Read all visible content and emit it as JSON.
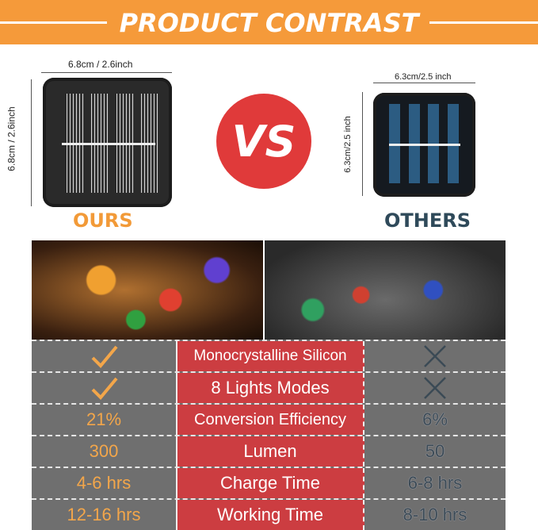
{
  "banner": {
    "title": "PRODUCT CONTRAST",
    "color": "#f59a3a"
  },
  "ours": {
    "label": "OURS",
    "width_dim": "6.8cm / 2.6inch",
    "height_dim": "6.8cm / 2.6inch",
    "label_color": "#f29a38"
  },
  "others": {
    "label": "OTHERS",
    "width_dim": "6.3cm/2.5 inch",
    "height_dim": "6.3cm/2.5 inch",
    "label_color": "#2f4a5a"
  },
  "vs": {
    "text": "VS",
    "color": "#e03a3a"
  },
  "comparison": {
    "rows": [
      {
        "ours": "check-icon",
        "feature": "Monocrystalline Silicon",
        "others": "x-icon"
      },
      {
        "ours": "check-icon",
        "feature": "8 Lights Modes",
        "others": "x-icon"
      },
      {
        "ours": "21%",
        "feature": "Conversion Efficiency",
        "others": "6%"
      },
      {
        "ours": "300",
        "feature": "Lumen",
        "others": "50"
      },
      {
        "ours": "4-6 hrs",
        "feature": "Charge Time",
        "others": "6-8 hrs"
      },
      {
        "ours": "12-16 hrs",
        "feature": "Working Time",
        "others": "8-10 hrs"
      }
    ]
  }
}
